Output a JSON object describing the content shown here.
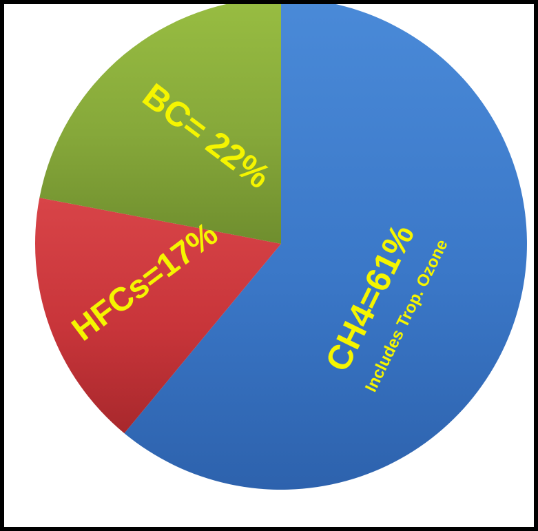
{
  "chart_data": {
    "type": "pie",
    "start_angle_deg": 0,
    "direction": "clockwise",
    "slices": [
      {
        "label": "CH4=61%",
        "sublabel": "Includes Trop. Ozone",
        "value": 61,
        "color": "#3b78c8",
        "color_light": "#4a8ad8",
        "color_dark": "#2d62ad"
      },
      {
        "label": "HFCs=17%",
        "sublabel": "",
        "value": 17,
        "color": "#c8353a",
        "color_light": "#d84448",
        "color_dark": "#a8282c"
      },
      {
        "label": "BC= 22%",
        "sublabel": "",
        "value": 22,
        "color": "#86a83a",
        "color_light": "#98bd42",
        "color_dark": "#6f8e2e"
      }
    ],
    "label_color": "#f5f500"
  }
}
